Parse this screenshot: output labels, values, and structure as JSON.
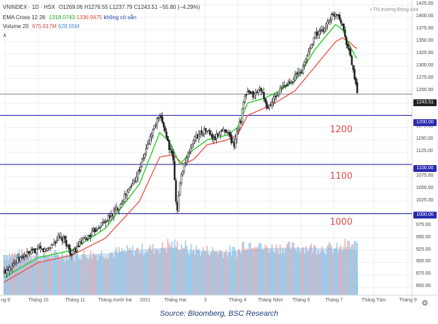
{
  "header": {
    "title": "VNINDEX · 1D · HSX",
    "ohlc": [
      "O1269.06",
      "H1276.55",
      "L1237.79",
      "C1243.51",
      "−55.80 (−4.29%)"
    ],
    "ema_label": "EMA Cross 12 26",
    "ema_v1": "1318.0743",
    "ema_v2": "1336.9475",
    "ema_extra": "không có sẵn",
    "vol_label": "Volume 20",
    "vol_v1": "675.617M",
    "vol_v2": "628.55M",
    "market_status": "• Thị trường Đóng cửa",
    "collapse": "∧"
  },
  "price_tags": {
    "last": "1243.51",
    "l1200": "1200.00",
    "l1100": "1100.00",
    "l1000": "1000.00"
  },
  "big_labels": {
    "a": "1200",
    "b": "1100",
    "c": "1000"
  },
  "source": "Source: Bloomberg, BSC Research",
  "colors": {
    "up": "#26a69a",
    "down": "#222222",
    "ema_fast": "#22cc22",
    "ema_slow": "#ef5350",
    "level_line": "#2a2ab0",
    "vol_up": "#92c9e8",
    "vol_down": "#f2a7a7",
    "grid": "#eceff3"
  },
  "chart_data": {
    "type": "candlestick",
    "y_ticks": [
      "1425.00",
      "1400.00",
      "1375.00",
      "1350.00",
      "1325.00",
      "1300.00",
      "1275.00",
      "1250.00",
      "1225.00",
      "1175.00",
      "1150.00",
      "1125.00",
      "1075.00",
      "1050.00",
      "1025.00",
      "975.00",
      "950.00",
      "925.00",
      "900.00",
      "875.00",
      "850.00"
    ],
    "ylim": [
      835,
      1435
    ],
    "x_labels": [
      "ng 9",
      "Tháng 10",
      "Tháng 11",
      "Tháng mười hai",
      "2021",
      "Tháng Hai",
      "3",
      "Tháng 4",
      "Tháng Năm",
      "Tháng 6",
      "Tháng 7",
      "Tháng Tám",
      "Tháng 9"
    ],
    "levels": [
      1200,
      1100,
      1000
    ],
    "last_close": 1243.51,
    "close_path": [
      [
        0,
        880
      ],
      [
        10,
        895
      ],
      [
        20,
        905
      ],
      [
        30,
        915
      ],
      [
        40,
        920
      ],
      [
        50,
        928
      ],
      [
        60,
        925
      ],
      [
        70,
        935
      ],
      [
        80,
        950
      ],
      [
        90,
        945
      ],
      [
        100,
        915
      ],
      [
        110,
        935
      ],
      [
        120,
        948
      ],
      [
        130,
        960
      ],
      [
        140,
        975
      ],
      [
        150,
        985
      ],
      [
        160,
        1000
      ],
      [
        170,
        1015
      ],
      [
        180,
        1040
      ],
      [
        190,
        1060
      ],
      [
        200,
        1090
      ],
      [
        210,
        1130
      ],
      [
        220,
        1170
      ],
      [
        228,
        1195
      ],
      [
        235,
        1185
      ],
      [
        245,
        1130
      ],
      [
        250,
        1110
      ],
      [
        255,
        1000
      ],
      [
        260,
        1060
      ],
      [
        265,
        1100
      ],
      [
        270,
        1110
      ],
      [
        280,
        1150
      ],
      [
        290,
        1165
      ],
      [
        300,
        1170
      ],
      [
        310,
        1150
      ],
      [
        320,
        1168
      ],
      [
        330,
        1170
      ],
      [
        335,
        1150
      ],
      [
        340,
        1140
      ],
      [
        345,
        1175
      ],
      [
        350,
        1190
      ],
      [
        355,
        1235
      ],
      [
        360,
        1245
      ],
      [
        370,
        1240
      ],
      [
        375,
        1250
      ],
      [
        380,
        1255
      ],
      [
        385,
        1225
      ],
      [
        390,
        1215
      ],
      [
        400,
        1235
      ],
      [
        410,
        1255
      ],
      [
        420,
        1265
      ],
      [
        430,
        1280
      ],
      [
        440,
        1290
      ],
      [
        450,
        1330
      ],
      [
        460,
        1365
      ],
      [
        470,
        1370
      ],
      [
        480,
        1395
      ],
      [
        487,
        1405
      ],
      [
        493,
        1410
      ],
      [
        500,
        1385
      ],
      [
        505,
        1355
      ],
      [
        510,
        1330
      ],
      [
        515,
        1300
      ],
      [
        522,
        1243
      ]
    ],
    "ema_fast": [
      [
        0,
        870
      ],
      [
        50,
        910
      ],
      [
        100,
        925
      ],
      [
        150,
        970
      ],
      [
        200,
        1060
      ],
      [
        230,
        1165
      ],
      [
        245,
        1145
      ],
      [
        260,
        1100
      ],
      [
        275,
        1125
      ],
      [
        300,
        1150
      ],
      [
        330,
        1160
      ],
      [
        345,
        1175
      ],
      [
        360,
        1225
      ],
      [
        385,
        1235
      ],
      [
        400,
        1245
      ],
      [
        430,
        1270
      ],
      [
        460,
        1335
      ],
      [
        490,
        1385
      ],
      [
        500,
        1375
      ],
      [
        510,
        1345
      ],
      [
        520,
        1318
      ]
    ],
    "ema_slow": [
      [
        0,
        860
      ],
      [
        50,
        900
      ],
      [
        100,
        915
      ],
      [
        150,
        950
      ],
      [
        200,
        1025
      ],
      [
        230,
        1115
      ],
      [
        250,
        1120
      ],
      [
        265,
        1100
      ],
      [
        280,
        1110
      ],
      [
        300,
        1140
      ],
      [
        330,
        1150
      ],
      [
        345,
        1160
      ],
      [
        360,
        1200
      ],
      [
        385,
        1215
      ],
      [
        400,
        1225
      ],
      [
        430,
        1250
      ],
      [
        460,
        1300
      ],
      [
        490,
        1350
      ],
      [
        500,
        1358
      ],
      [
        510,
        1350
      ],
      [
        520,
        1337
      ]
    ],
    "volume_avg": [
      [
        0,
        915
      ],
      [
        60,
        913
      ],
      [
        120,
        915
      ],
      [
        160,
        919
      ],
      [
        200,
        925
      ],
      [
        240,
        930
      ],
      [
        260,
        926
      ],
      [
        300,
        923
      ],
      [
        330,
        921
      ],
      [
        360,
        924
      ],
      [
        390,
        929
      ],
      [
        420,
        930
      ],
      [
        460,
        929
      ],
      [
        480,
        928
      ],
      [
        500,
        926
      ],
      [
        520,
        924
      ]
    ]
  }
}
